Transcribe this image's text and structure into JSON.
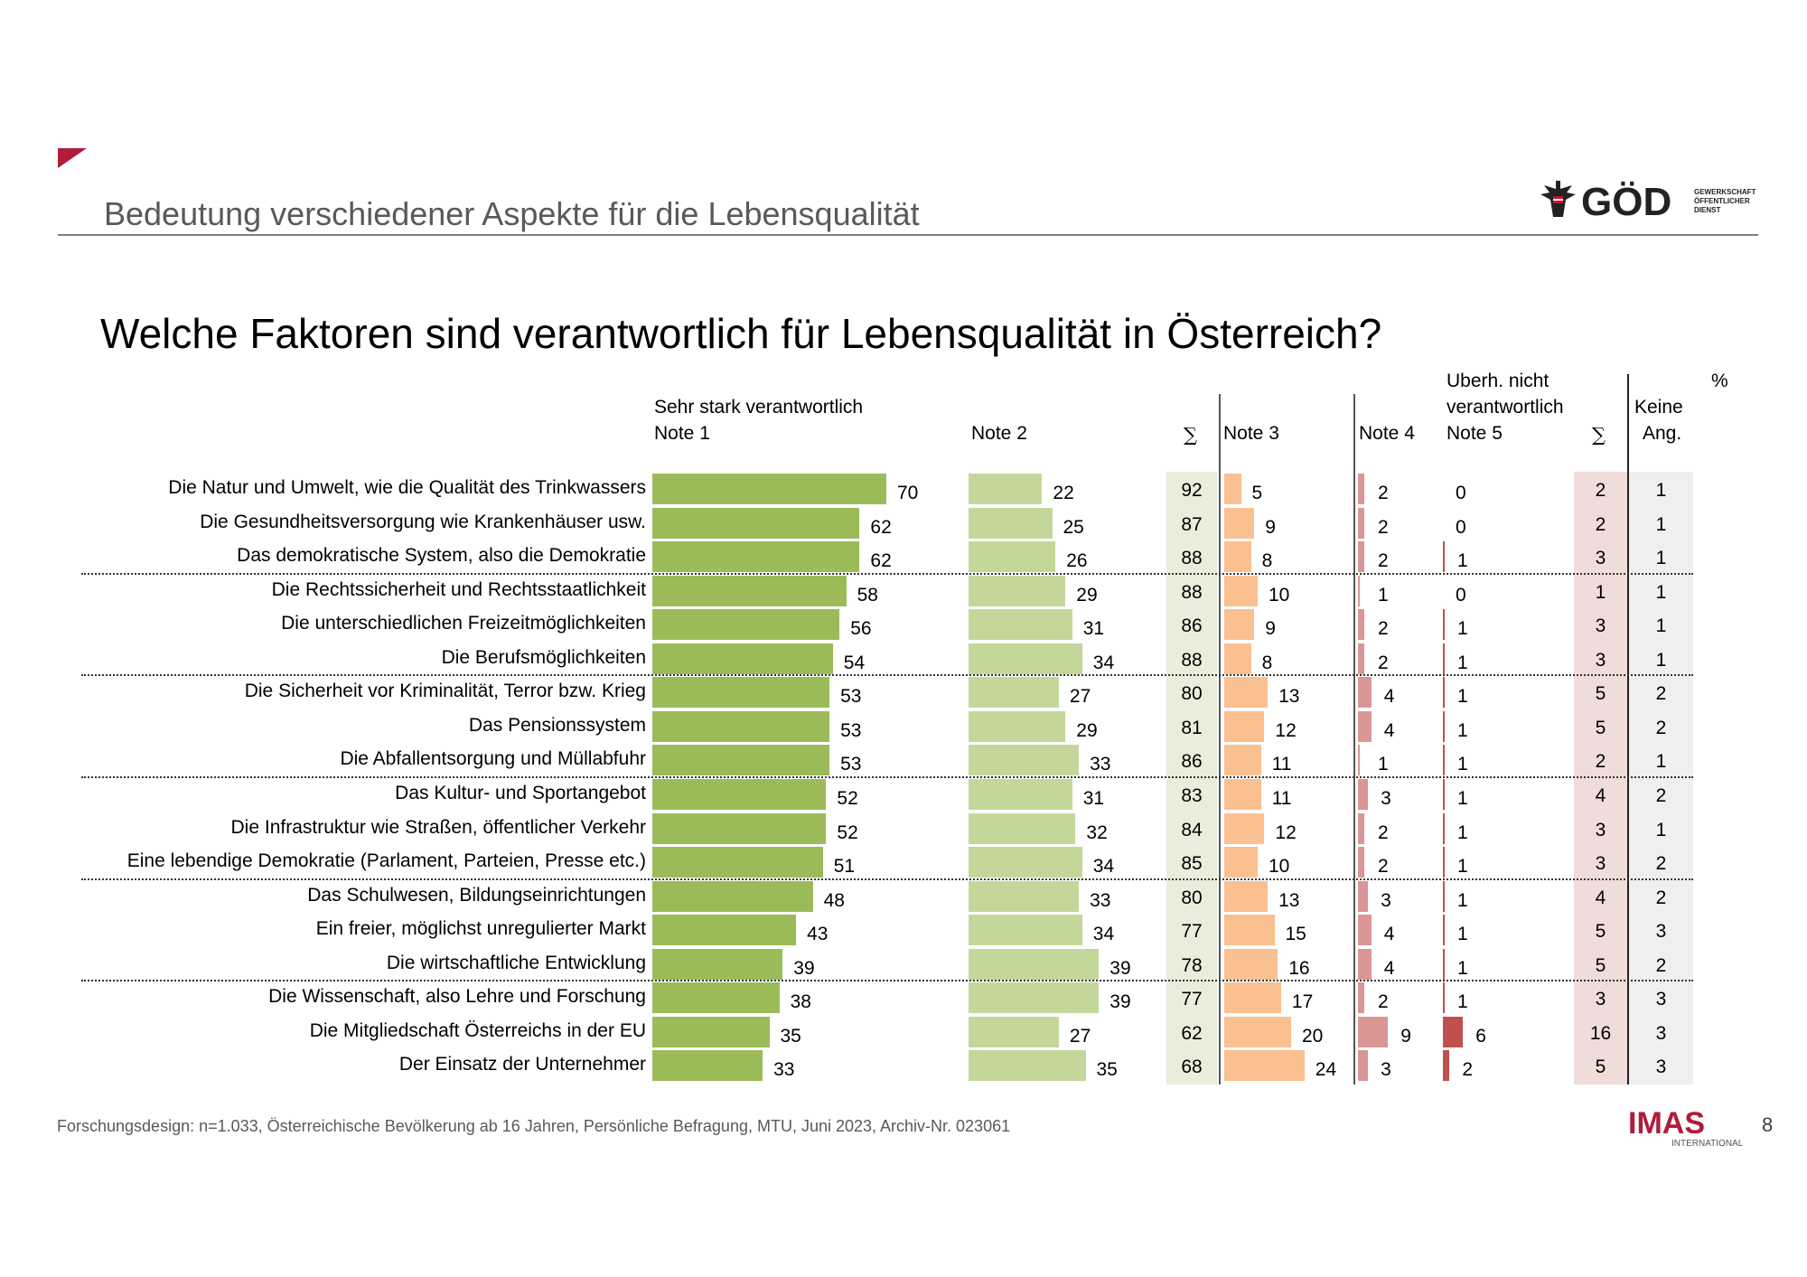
{
  "header": {
    "subtitle": "Bedeutung verschiedener Aspekte für die Lebensqualität",
    "logo_text": "GÖD",
    "logo_subtext": "GEWERKSCHAFT ÖFFENTLICHER DIENST"
  },
  "chart_data": {
    "type": "bar",
    "title": "Welche Faktoren sind verantwortlich für Lebensqualität in Österreich?",
    "unit": "%",
    "columns": {
      "n1_top": "Sehr stark verantwortlich",
      "n1": "Note 1",
      "n2": "Note 2",
      "sum1": "∑",
      "n3": "Note 3",
      "n4": "Note 4",
      "n5_top1": "Uberh. nicht",
      "n5_top2": "verantwortlich",
      "n5": "Note 5",
      "sum2": "∑",
      "na1": "Keine",
      "na2": "Ang."
    },
    "colors": {
      "n1": "#9bbb59",
      "n2": "#c4d79b",
      "n3": "#fac090",
      "n4": "#d99694",
      "n5": "#c0504d",
      "sum1_bg": "#e9eedc",
      "sum2_bg": "#f0dcd9",
      "na_bg": "#efefef"
    },
    "rows": [
      {
        "label": "Die Natur und Umwelt, wie die Qualität des Trinkwassers",
        "n1": 70,
        "n2": 22,
        "sum1": 92,
        "n3": 5,
        "n4": 2,
        "n5": 0,
        "sum2": 2,
        "na": 1
      },
      {
        "label": "Die Gesundheitsversorgung wie Krankenhäuser usw.",
        "n1": 62,
        "n2": 25,
        "sum1": 87,
        "n3": 9,
        "n4": 2,
        "n5": 0,
        "sum2": 2,
        "na": 1
      },
      {
        "label": "Das demokratische System, also die Demokratie",
        "n1": 62,
        "n2": 26,
        "sum1": 88,
        "n3": 8,
        "n4": 2,
        "n5": 1,
        "sum2": 3,
        "na": 1
      },
      {
        "label": "Die Rechtssicherheit und Rechtsstaatlichkeit",
        "n1": 58,
        "n2": 29,
        "sum1": 88,
        "n3": 10,
        "n4": 1,
        "n5": 0,
        "sum2": 1,
        "na": 1
      },
      {
        "label": "Die unterschiedlichen Freizeitmöglichkeiten",
        "n1": 56,
        "n2": 31,
        "sum1": 86,
        "n3": 9,
        "n4": 2,
        "n5": 1,
        "sum2": 3,
        "na": 1
      },
      {
        "label": "Die Berufsmöglichkeiten",
        "n1": 54,
        "n2": 34,
        "sum1": 88,
        "n3": 8,
        "n4": 2,
        "n5": 1,
        "sum2": 3,
        "na": 1
      },
      {
        "label": "Die Sicherheit vor Kriminalität, Terror bzw. Krieg",
        "n1": 53,
        "n2": 27,
        "sum1": 80,
        "n3": 13,
        "n4": 4,
        "n5": 1,
        "sum2": 5,
        "na": 2
      },
      {
        "label": "Das Pensionssystem",
        "n1": 53,
        "n2": 29,
        "sum1": 81,
        "n3": 12,
        "n4": 4,
        "n5": 1,
        "sum2": 5,
        "na": 2
      },
      {
        "label": "Die Abfallentsorgung und Müllabfuhr",
        "n1": 53,
        "n2": 33,
        "sum1": 86,
        "n3": 11,
        "n4": 1,
        "n5": 1,
        "sum2": 2,
        "na": 1
      },
      {
        "label": "Das Kultur- und Sportangebot",
        "n1": 52,
        "n2": 31,
        "sum1": 83,
        "n3": 11,
        "n4": 3,
        "n5": 1,
        "sum2": 4,
        "na": 2
      },
      {
        "label": "Die Infrastruktur wie Straßen, öffentlicher Verkehr",
        "n1": 52,
        "n2": 32,
        "sum1": 84,
        "n3": 12,
        "n4": 2,
        "n5": 1,
        "sum2": 3,
        "na": 1
      },
      {
        "label": "Eine lebendige Demokratie (Parlament, Parteien, Presse etc.)",
        "n1": 51,
        "n2": 34,
        "sum1": 85,
        "n3": 10,
        "n4": 2,
        "n5": 1,
        "sum2": 3,
        "na": 2
      },
      {
        "label": "Das Schulwesen, Bildungseinrichtungen",
        "n1": 48,
        "n2": 33,
        "sum1": 80,
        "n3": 13,
        "n4": 3,
        "n5": 1,
        "sum2": 4,
        "na": 2
      },
      {
        "label": "Ein freier, möglichst unregulierter Markt",
        "n1": 43,
        "n2": 34,
        "sum1": 77,
        "n3": 15,
        "n4": 4,
        "n5": 1,
        "sum2": 5,
        "na": 3
      },
      {
        "label": "Die wirtschaftliche Entwicklung",
        "n1": 39,
        "n2": 39,
        "sum1": 78,
        "n3": 16,
        "n4": 4,
        "n5": 1,
        "sum2": 5,
        "na": 2
      },
      {
        "label": "Die Wissenschaft, also Lehre und Forschung",
        "n1": 38,
        "n2": 39,
        "sum1": 77,
        "n3": 17,
        "n4": 2,
        "n5": 1,
        "sum2": 3,
        "na": 3
      },
      {
        "label": "Die Mitgliedschaft Österreichs in der EU",
        "n1": 35,
        "n2": 27,
        "sum1": 62,
        "n3": 20,
        "n4": 9,
        "n5": 6,
        "sum2": 16,
        "na": 3
      },
      {
        "label": "Der Einsatz der Unternehmer",
        "n1": 33,
        "n2": 35,
        "sum1": 68,
        "n3": 24,
        "n4": 3,
        "n5": 2,
        "sum2": 5,
        "na": 3
      }
    ]
  },
  "footer": {
    "text": "Forschungsdesign: n=1.033, Österreichische Bevölkerung ab 16 Jahren, Persönliche Befragung, MTU, Juni 2023, Archiv-Nr. 023061",
    "imas": "IMAS",
    "imas_sub": "INTERNATIONAL",
    "page": "8"
  }
}
